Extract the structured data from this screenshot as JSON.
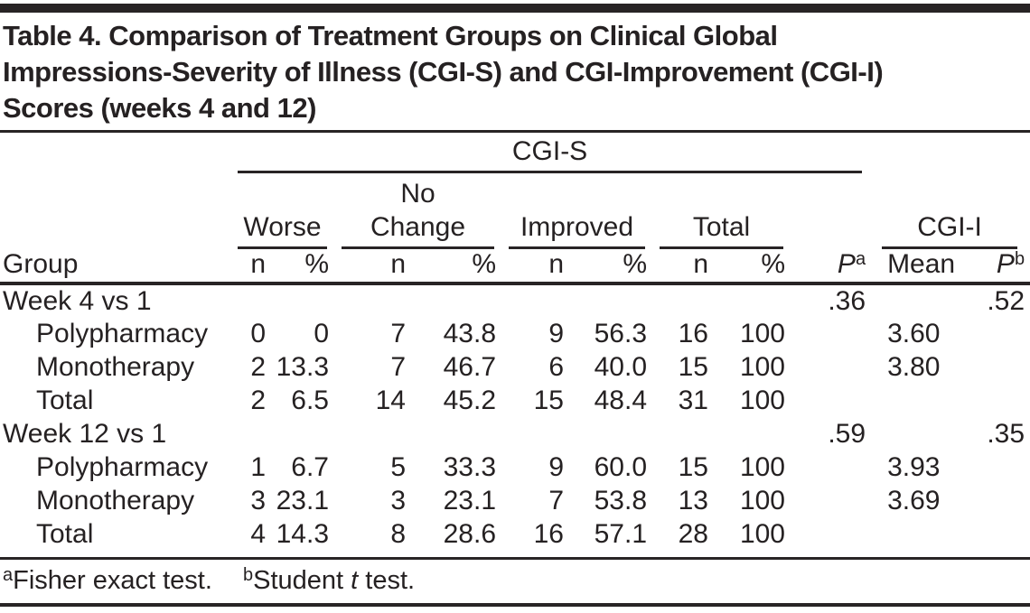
{
  "title": {
    "lines": [
      "Table 4. Comparison of Treatment Groups on Clinical Global",
      "Impressions-Severity of Illness (CGI-S) and CGI-Improvement (CGI-I)",
      "Scores (weeks 4 and 12)"
    ]
  },
  "table": {
    "span_header": "CGI-S",
    "col_groups": [
      {
        "label": "Worse"
      },
      {
        "label": "No Change"
      },
      {
        "label": "Improved"
      },
      {
        "label": "Total"
      },
      {
        "label": "CGI-I"
      }
    ],
    "sub_headers": {
      "group": "Group",
      "n": "n",
      "pct": "%",
      "p_fisher": {
        "base": "P",
        "sup": "a"
      },
      "mean": "Mean",
      "p_student": {
        "base": "P",
        "sup": "b"
      }
    },
    "rows": [
      {
        "label": "Week 4 vs 1",
        "indent": false,
        "cells": [
          "",
          "",
          "",
          "",
          "",
          "",
          "",
          "",
          ".36",
          "",
          ".52"
        ]
      },
      {
        "label": "Polypharmacy",
        "indent": true,
        "cells": [
          "0",
          "0",
          "7",
          "43.8",
          "9",
          "56.3",
          "16",
          "100",
          "",
          "3.60",
          ""
        ]
      },
      {
        "label": "Monotherapy",
        "indent": true,
        "cells": [
          "2",
          "13.3",
          "7",
          "46.7",
          "6",
          "40.0",
          "15",
          "100",
          "",
          "3.80",
          ""
        ]
      },
      {
        "label": "Total",
        "indent": true,
        "cells": [
          "2",
          "6.5",
          "14",
          "45.2",
          "15",
          "48.4",
          "31",
          "100",
          "",
          "",
          ""
        ]
      },
      {
        "label": "Week 12 vs 1",
        "indent": false,
        "cells": [
          "",
          "",
          "",
          "",
          "",
          "",
          "",
          "",
          ".59",
          "",
          ".35"
        ]
      },
      {
        "label": "Polypharmacy",
        "indent": true,
        "cells": [
          "1",
          "6.7",
          "5",
          "33.3",
          "9",
          "60.0",
          "15",
          "100",
          "",
          "3.93",
          ""
        ]
      },
      {
        "label": "Monotherapy",
        "indent": true,
        "cells": [
          "3",
          "23.1",
          "3",
          "23.1",
          "7",
          "53.8",
          "13",
          "100",
          "",
          "3.69",
          ""
        ]
      },
      {
        "label": "Total",
        "indent": true,
        "cells": [
          "4",
          "14.3",
          "8",
          "28.6",
          "16",
          "57.1",
          "28",
          "100",
          "",
          "",
          ""
        ]
      }
    ]
  },
  "footnotes": [
    {
      "sup": "a",
      "pre": "Fisher exact test.",
      "italic": "",
      "post": ""
    },
    {
      "sup": "b",
      "pre": "Student ",
      "italic": "t",
      "post": " test."
    }
  ]
}
